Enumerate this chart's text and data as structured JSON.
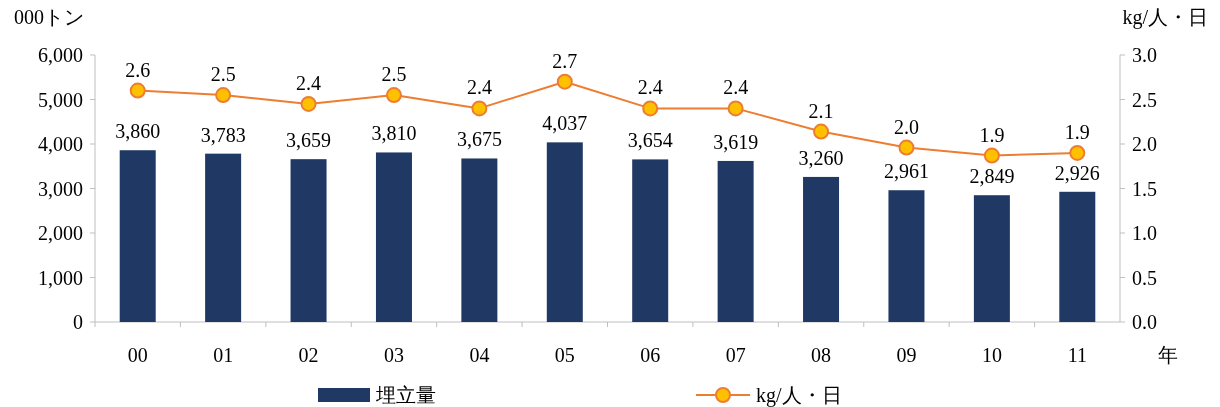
{
  "chart_data": {
    "type": "bar",
    "categories": [
      "00",
      "01",
      "02",
      "03",
      "04",
      "05",
      "06",
      "07",
      "08",
      "09",
      "10",
      "11"
    ],
    "xlabel": "年",
    "ylabel": "000トン",
    "y2label": "kg/人・日",
    "ylim": [
      0,
      6000
    ],
    "yticks": [
      {
        "value": 0,
        "label": "0"
      },
      {
        "value": 1000,
        "label": "1,000"
      },
      {
        "value": 2000,
        "label": "2,000"
      },
      {
        "value": 3000,
        "label": "3,000"
      },
      {
        "value": 4000,
        "label": "4,000"
      },
      {
        "value": 5000,
        "label": "5,000"
      },
      {
        "value": 6000,
        "label": "6,000"
      }
    ],
    "y2lim": [
      0,
      3
    ],
    "y2ticks": [
      {
        "value": 0,
        "label": "0.0"
      },
      {
        "value": 0.5,
        "label": "0.5"
      },
      {
        "value": 1,
        "label": "1.0"
      },
      {
        "value": 1.5,
        "label": "1.5"
      },
      {
        "value": 2,
        "label": "2.0"
      },
      {
        "value": 2.5,
        "label": "2.5"
      },
      {
        "value": 3,
        "label": "3.0"
      }
    ],
    "legend": "bottom",
    "grid": false,
    "series": [
      {
        "name": "埋立量",
        "color": "#1f3864",
        "values": [
          3860,
          3783,
          3659,
          3810,
          3675,
          4037,
          3654,
          3619,
          3260,
          2961,
          2849,
          2926
        ],
        "value_labels": [
          "3,860",
          "3,783",
          "3,659",
          "3,810",
          "3,675",
          "4,037",
          "3,654",
          "3,619",
          "3,260",
          "2,961",
          "2,849",
          "2,926"
        ]
      },
      {
        "name": "kg/人・日",
        "type": "line",
        "axis": "y2",
        "color": "#ed7d31",
        "marker": "circle",
        "values": [
          2.6,
          2.55,
          2.45,
          2.55,
          2.4,
          2.7,
          2.4,
          2.4,
          2.14,
          1.96,
          1.87,
          1.9
        ],
        "value_labels": [
          "2.6",
          "2.5",
          "2.4",
          "2.5",
          "2.4",
          "2.7",
          "2.4",
          "2.4",
          "2.1",
          "2.0",
          "1.9",
          "1.9"
        ]
      }
    ]
  }
}
